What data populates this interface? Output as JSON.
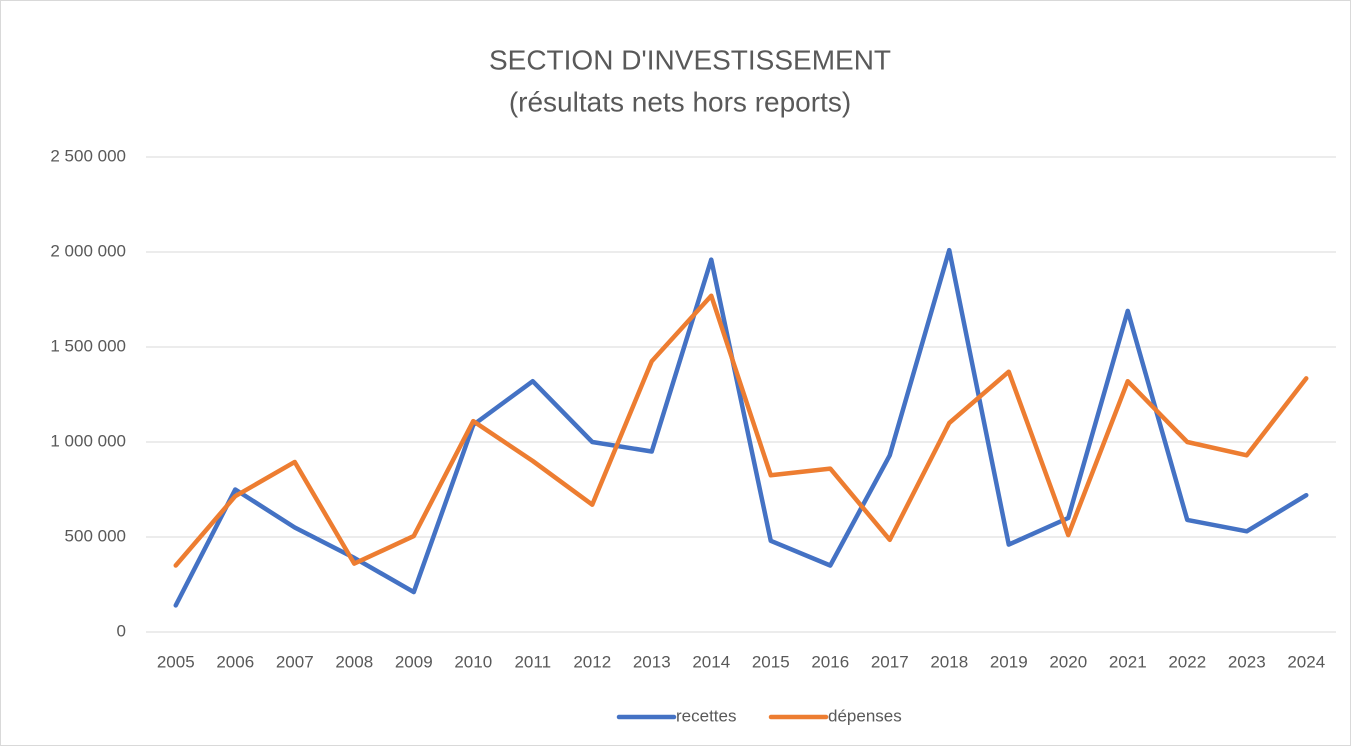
{
  "chart_data": {
    "type": "line",
    "title": "SECTION D'INVESTISSEMENT",
    "subtitle": "(résultats nets hors reports)",
    "categories": [
      "2005",
      "2006",
      "2007",
      "2008",
      "2009",
      "2010",
      "2011",
      "2012",
      "2013",
      "2014",
      "2015",
      "2016",
      "2017",
      "2018",
      "2019",
      "2020",
      "2021",
      "2022",
      "2023",
      "2024"
    ],
    "series": [
      {
        "name": "recettes",
        "color": "#4472c4",
        "values": [
          140000,
          750000,
          550000,
          390000,
          210000,
          1090000,
          1320000,
          1000000,
          950000,
          1960000,
          480000,
          350000,
          930000,
          2010000,
          460000,
          600000,
          1690000,
          590000,
          530000,
          720000
        ]
      },
      {
        "name": "dépenses",
        "color": "#ed7d31",
        "values": [
          350000,
          715000,
          895000,
          360000,
          505000,
          1110000,
          900000,
          670000,
          1425000,
          1770000,
          825000,
          860000,
          485000,
          1100000,
          1370000,
          510000,
          1320000,
          1000000,
          930000,
          1335000
        ]
      }
    ],
    "ylim": [
      0,
      2500000
    ],
    "yticks": [
      0,
      {
        "value": 500000,
        "label": "500 000"
      },
      {
        "value": 1000000,
        "label": "1 000 000"
      },
      {
        "value": 1500000,
        "label": "1 500 000"
      },
      {
        "value": 2000000,
        "label": "2 000 000"
      },
      {
        "value": 2500000,
        "label": "2 500 000"
      }
    ],
    "grid": true,
    "legend": "bottom"
  }
}
